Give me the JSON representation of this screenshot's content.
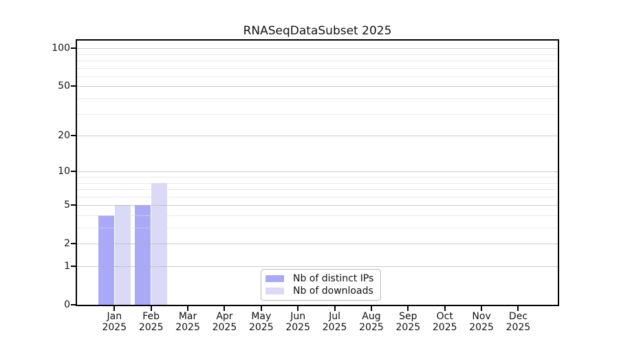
{
  "chart_data": {
    "type": "bar",
    "title": "RNASeqDataSubset 2025",
    "months": [
      "Jan",
      "Feb",
      "Mar",
      "Apr",
      "May",
      "Jun",
      "Jul",
      "Aug",
      "Sep",
      "Oct",
      "Nov",
      "Dec"
    ],
    "year": "2025",
    "series": [
      {
        "name": "Nb of distinct IPs",
        "color": "#a9a9f7",
        "values": [
          4,
          5,
          0,
          0,
          0,
          0,
          0,
          0,
          0,
          0,
          0,
          0
        ]
      },
      {
        "name": "Nb of downloads",
        "color": "#dadaf8",
        "values": [
          5,
          8,
          0,
          0,
          0,
          0,
          0,
          0,
          0,
          0,
          0,
          0
        ]
      }
    ],
    "yscale": "log1p",
    "ylim": [
      0,
      115
    ],
    "yticks": [
      0,
      1,
      2,
      5,
      10,
      20,
      50,
      100
    ],
    "yticks_minor": [
      3,
      4,
      6,
      7,
      8,
      9,
      30,
      40,
      60,
      70,
      80,
      90
    ],
    "grid": "both",
    "legend_position": "lower center",
    "colors": {
      "grid_major": "#afafaf",
      "grid_minor": "#dddddd",
      "spine": "#000000"
    }
  }
}
